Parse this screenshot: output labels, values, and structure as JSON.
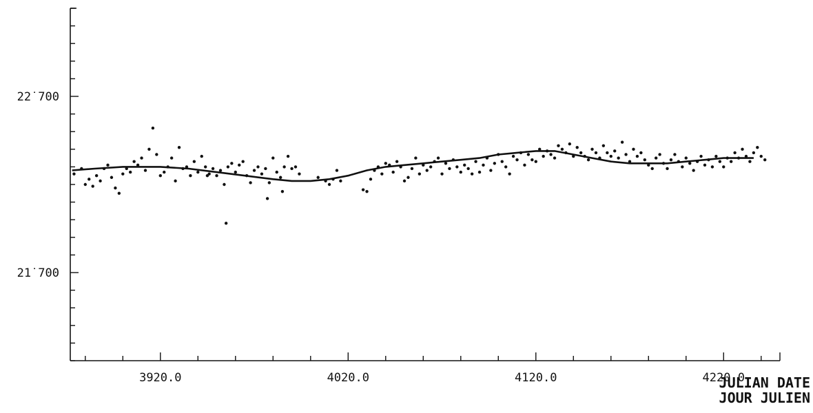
{
  "chart_data": {
    "type": "scatter",
    "title": "",
    "xlabel": "JULIAN DATE",
    "xlabel_fr": "JOUR JULIEN",
    "ylabel": "",
    "xlim": [
      3872,
      4250
    ],
    "ylim": [
      21.2,
      23.2
    ],
    "x_ticks": [
      3920,
      4020,
      4120,
      4220
    ],
    "x_tick_labels": [
      "3920.0",
      "4020.0",
      "4120.0",
      "4220.0"
    ],
    "y_ticks": [
      21.7,
      22.7
    ],
    "y_tick_labels": [
      "21˙700",
      "22˙700"
    ],
    "grid": false,
    "series": [
      {
        "kind": "points",
        "points": [
          [
            3874,
            22.26
          ],
          [
            3878,
            22.29
          ],
          [
            3880,
            22.2
          ],
          [
            3882,
            22.23
          ],
          [
            3884,
            22.19
          ],
          [
            3886,
            22.25
          ],
          [
            3888,
            22.22
          ],
          [
            3890,
            22.29
          ],
          [
            3892,
            22.31
          ],
          [
            3894,
            22.24
          ],
          [
            3896,
            22.18
          ],
          [
            3898,
            22.15
          ],
          [
            3900,
            22.26
          ],
          [
            3902,
            22.29
          ],
          [
            3904,
            22.27
          ],
          [
            3906,
            22.33
          ],
          [
            3908,
            22.31
          ],
          [
            3910,
            22.35
          ],
          [
            3912,
            22.28
          ],
          [
            3914,
            22.4
          ],
          [
            3916,
            22.52
          ],
          [
            3918,
            22.37
          ],
          [
            3920,
            22.25
          ],
          [
            3922,
            22.27
          ],
          [
            3924,
            22.3
          ],
          [
            3926,
            22.35
          ],
          [
            3928,
            22.22
          ],
          [
            3930,
            22.41
          ],
          [
            3932,
            22.29
          ],
          [
            3934,
            22.3
          ],
          [
            3936,
            22.25
          ],
          [
            3938,
            22.33
          ],
          [
            3940,
            22.27
          ],
          [
            3942,
            22.36
          ],
          [
            3944,
            22.3
          ],
          [
            3946,
            22.26
          ],
          [
            3950,
            22.25
          ],
          [
            3952,
            22.28
          ],
          [
            3954,
            22.2
          ],
          [
            3956,
            22.3
          ],
          [
            3958,
            22.32
          ],
          [
            3960,
            22.27
          ],
          [
            3962,
            22.31
          ],
          [
            3964,
            22.33
          ],
          [
            3966,
            22.25
          ],
          [
            3968,
            22.21
          ],
          [
            3970,
            22.28
          ],
          [
            3972,
            22.3
          ],
          [
            3974,
            22.26
          ],
          [
            3976,
            22.29
          ],
          [
            3978,
            22.21
          ],
          [
            3980,
            22.35
          ],
          [
            3982,
            22.27
          ],
          [
            3984,
            22.24
          ],
          [
            3986,
            22.3
          ],
          [
            3988,
            22.36
          ],
          [
            3990,
            22.29
          ],
          [
            3955,
            21.98
          ],
          [
            3977,
            22.12
          ],
          [
            3985,
            22.16
          ],
          [
            3945,
            22.25
          ],
          [
            3948,
            22.29
          ],
          [
            3992,
            22.3
          ],
          [
            3994,
            22.26
          ],
          [
            4004,
            22.24
          ],
          [
            4008,
            22.22
          ],
          [
            4010,
            22.2
          ],
          [
            4012,
            22.23
          ],
          [
            4014,
            22.28
          ],
          [
            4016,
            22.22
          ],
          [
            4028,
            22.17
          ],
          [
            4030,
            22.16
          ],
          [
            4032,
            22.23
          ],
          [
            4034,
            22.28
          ],
          [
            4036,
            22.3
          ],
          [
            4038,
            22.26
          ],
          [
            4040,
            22.32
          ],
          [
            4042,
            22.31
          ],
          [
            4044,
            22.27
          ],
          [
            4046,
            22.33
          ],
          [
            4048,
            22.3
          ],
          [
            4050,
            22.22
          ],
          [
            4052,
            22.24
          ],
          [
            4054,
            22.29
          ],
          [
            4056,
            22.35
          ],
          [
            4058,
            22.26
          ],
          [
            4060,
            22.31
          ],
          [
            4062,
            22.28
          ],
          [
            4064,
            22.3
          ],
          [
            4066,
            22.33
          ],
          [
            4068,
            22.35
          ],
          [
            4070,
            22.26
          ],
          [
            4072,
            22.32
          ],
          [
            4074,
            22.29
          ],
          [
            4076,
            22.34
          ],
          [
            4078,
            22.3
          ],
          [
            4080,
            22.27
          ],
          [
            4082,
            22.31
          ],
          [
            4084,
            22.29
          ],
          [
            4086,
            22.26
          ],
          [
            4088,
            22.33
          ],
          [
            4090,
            22.27
          ],
          [
            4092,
            22.31
          ],
          [
            4094,
            22.35
          ],
          [
            4096,
            22.28
          ],
          [
            4098,
            22.32
          ],
          [
            4100,
            22.37
          ],
          [
            4102,
            22.33
          ],
          [
            4104,
            22.3
          ],
          [
            4106,
            22.26
          ],
          [
            4108,
            22.36
          ],
          [
            4110,
            22.34
          ],
          [
            4112,
            22.38
          ],
          [
            4114,
            22.31
          ],
          [
            4116,
            22.37
          ],
          [
            4118,
            22.34
          ],
          [
            4120,
            22.33
          ],
          [
            4122,
            22.4
          ],
          [
            4124,
            22.36
          ],
          [
            4126,
            22.39
          ],
          [
            4128,
            22.37
          ],
          [
            4130,
            22.35
          ],
          [
            4132,
            22.42
          ],
          [
            4134,
            22.4
          ],
          [
            4136,
            22.38
          ],
          [
            4138,
            22.43
          ],
          [
            4140,
            22.36
          ],
          [
            4142,
            22.41
          ],
          [
            4144,
            22.38
          ],
          [
            4146,
            22.36
          ],
          [
            4148,
            22.34
          ],
          [
            4150,
            22.4
          ],
          [
            4152,
            22.38
          ],
          [
            4154,
            22.35
          ],
          [
            4156,
            22.42
          ],
          [
            4158,
            22.38
          ],
          [
            4160,
            22.36
          ],
          [
            4162,
            22.39
          ],
          [
            4164,
            22.35
          ],
          [
            4166,
            22.44
          ],
          [
            4168,
            22.37
          ],
          [
            4170,
            22.33
          ],
          [
            4172,
            22.4
          ],
          [
            4174,
            22.36
          ],
          [
            4176,
            22.38
          ],
          [
            4178,
            22.34
          ],
          [
            4180,
            22.31
          ],
          [
            4182,
            22.29
          ],
          [
            4184,
            22.35
          ],
          [
            4186,
            22.37
          ],
          [
            4188,
            22.32
          ],
          [
            4190,
            22.29
          ],
          [
            4192,
            22.34
          ],
          [
            4194,
            22.37
          ],
          [
            4196,
            22.33
          ],
          [
            4198,
            22.3
          ],
          [
            4200,
            22.35
          ],
          [
            4202,
            22.32
          ],
          [
            4204,
            22.28
          ],
          [
            4206,
            22.33
          ],
          [
            4208,
            22.36
          ],
          [
            4210,
            22.31
          ],
          [
            4212,
            22.34
          ],
          [
            4214,
            22.3
          ],
          [
            4216,
            22.36
          ],
          [
            4218,
            22.33
          ],
          [
            4220,
            22.3
          ],
          [
            4222,
            22.35
          ],
          [
            4224,
            22.33
          ],
          [
            4226,
            22.38
          ],
          [
            4228,
            22.35
          ],
          [
            4230,
            22.4
          ],
          [
            4232,
            22.36
          ],
          [
            4234,
            22.33
          ],
          [
            4236,
            22.38
          ],
          [
            4238,
            22.41
          ],
          [
            4240,
            22.36
          ],
          [
            4242,
            22.34
          ]
        ]
      },
      {
        "kind": "line",
        "x": [
          3873,
          3885,
          3900,
          3910,
          3920,
          3935,
          3950,
          3965,
          3980,
          3990,
          4000,
          4010,
          4020,
          4030,
          4040,
          4050,
          4060,
          4070,
          4080,
          4090,
          4100,
          4110,
          4120,
          4130,
          4140,
          4150,
          4160,
          4170,
          4180,
          4190,
          4200,
          4210,
          4220,
          4230,
          4236
        ],
        "y": [
          22.28,
          22.29,
          22.3,
          22.3,
          22.3,
          22.29,
          22.27,
          22.25,
          22.23,
          22.22,
          22.22,
          22.23,
          22.25,
          22.28,
          22.3,
          22.31,
          22.32,
          22.33,
          22.34,
          22.35,
          22.37,
          22.38,
          22.39,
          22.39,
          22.37,
          22.35,
          22.33,
          22.32,
          22.32,
          22.32,
          22.33,
          22.34,
          22.35,
          22.35,
          22.35
        ]
      }
    ]
  }
}
